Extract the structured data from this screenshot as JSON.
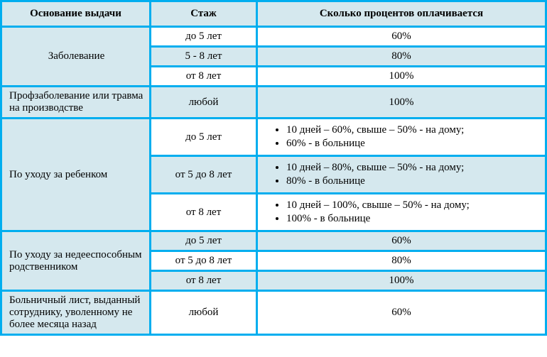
{
  "columns": {
    "basis": "Основание выдачи",
    "experience": "Стаж",
    "percent": "Сколько процентов оплачивается"
  },
  "sections": [
    {
      "basis": "Заболевание",
      "basis_align": "center",
      "rows": [
        {
          "exp": "до 5 лет",
          "pct": "60%",
          "shade": false
        },
        {
          "exp": "5 - 8 лет",
          "pct": "80%",
          "shade": true
        },
        {
          "exp": "от 8 лет",
          "pct": "100%",
          "shade": false
        }
      ],
      "basis_shade": true
    },
    {
      "basis": "Профзаболевание или травма на производстве",
      "basis_align": "left",
      "rows": [
        {
          "exp": "любой",
          "pct": "100%",
          "shade": true
        }
      ],
      "basis_shade": true
    },
    {
      "basis": "По уходу за ребенком",
      "basis_align": "left",
      "rows": [
        {
          "exp": "до 5 лет",
          "bullets": [
            "10 дней – 60%, свыше – 50% - на дому;",
            "60% - в больнице"
          ],
          "shade": false
        },
        {
          "exp": "от 5 до 8 лет",
          "bullets": [
            "10 дней – 80%, свыше – 50% - на дому;",
            "80% - в больнице"
          ],
          "shade": true
        },
        {
          "exp": "от 8 лет",
          "bullets": [
            "10 дней – 100%, свыше – 50% - на дому;",
            "100% - в больнице"
          ],
          "shade": false
        }
      ],
      "basis_shade": true
    },
    {
      "basis": "По уходу за недееспособным родственником",
      "basis_align": "left",
      "rows": [
        {
          "exp": "до 5 лет",
          "pct": "60%",
          "shade": true
        },
        {
          "exp": "от 5 до 8 лет",
          "pct": "80%",
          "shade": false
        },
        {
          "exp": "от 8 лет",
          "pct": "100%",
          "shade": true
        }
      ],
      "basis_shade": true
    },
    {
      "basis": "Больничный лист, выданный сотруднику, уволенному не более месяца назад",
      "basis_align": "left",
      "rows": [
        {
          "exp": "любой",
          "pct": "60%",
          "shade": false
        }
      ],
      "basis_shade": true
    }
  ]
}
